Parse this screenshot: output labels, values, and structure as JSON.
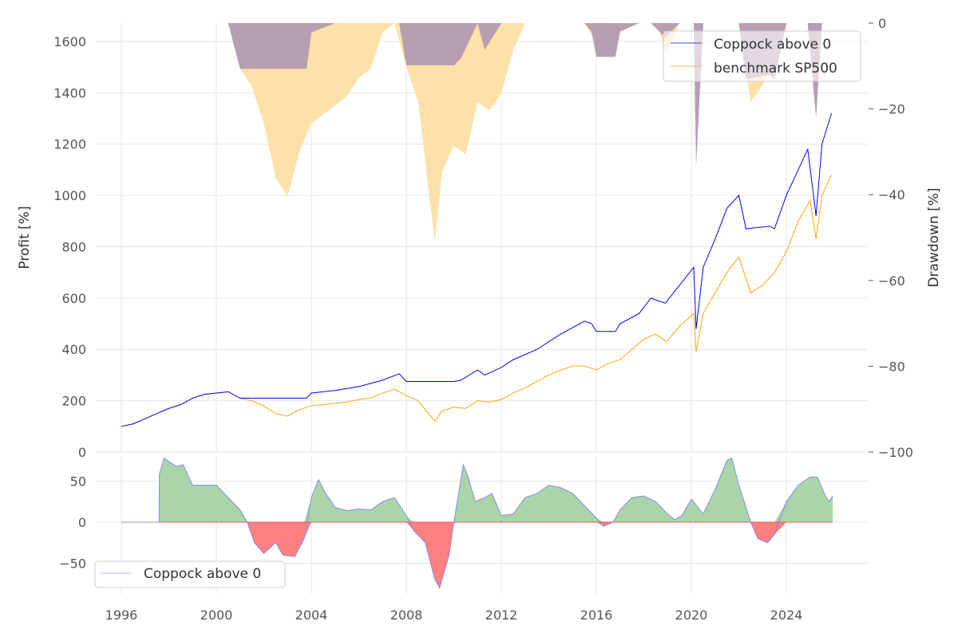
{
  "chart_data": [
    {
      "type": "line",
      "panel": "top",
      "ylabel": "Profit [%]",
      "ylabel_right": "Drawdown [%]",
      "ylim": [
        0,
        1670
      ],
      "ylim_right": [
        -100,
        0
      ],
      "yticks": [
        0,
        200,
        400,
        600,
        800,
        1000,
        1200,
        1400,
        1600
      ],
      "yticks_right": [
        0,
        -20,
        -40,
        -60,
        -80,
        -100
      ],
      "yticks_right_labels": [
        "0",
        "−20",
        "−40",
        "−60",
        "−80",
        "−100"
      ],
      "grid": true,
      "legend": {
        "placement": "top-right",
        "entries": [
          "Coppock above 0",
          "benchmark SP500"
        ]
      },
      "colors": {
        "strategy": "#0000ff",
        "benchmark": "#ffa500",
        "strategy_dd": "#aaaaff",
        "benchmark_dd": "#ffe0a8",
        "overlap_dd": "#c8a8a8"
      },
      "series": [
        {
          "name": "Coppock above 0",
          "x": [
            1996,
            1996.5,
            1997,
            1997.5,
            1998,
            1998.5,
            1999,
            1999.5,
            2000,
            2000.5,
            2001,
            2003.8,
            2004,
            2005,
            2006,
            2007,
            2007.7,
            2008,
            2010,
            2010.3,
            2011,
            2011.3,
            2012,
            2012.5,
            2013.5,
            2014.5,
            2015.5,
            2015.8,
            2016,
            2016.8,
            2017,
            2017.8,
            2018.3,
            2018.9,
            2019.5,
            2020.1,
            2020.2,
            2020.5,
            2021,
            2021.5,
            2022,
            2022.3,
            2023.3,
            2023.5,
            2024,
            2024.5,
            2024.9,
            2025.25,
            2025.5,
            2025.9
          ],
          "y": [
            100,
            110,
            130,
            150,
            170,
            185,
            210,
            225,
            230,
            235,
            210,
            210,
            230,
            240,
            255,
            280,
            305,
            275,
            275,
            280,
            320,
            300,
            330,
            360,
            400,
            460,
            510,
            500,
            470,
            470,
            500,
            540,
            600,
            580,
            650,
            720,
            480,
            720,
            830,
            950,
            1000,
            870,
            880,
            870,
            1000,
            1100,
            1180,
            920,
            1200,
            1320
          ]
        },
        {
          "name": "benchmark SP500",
          "x": [
            1996,
            1996.5,
            1997,
            1997.5,
            1998,
            1998.5,
            1999,
            1999.5,
            2000,
            2000.5,
            2001,
            2001.5,
            2002,
            2002.5,
            2003,
            2003.5,
            2004,
            2004.5,
            2005,
            2005.5,
            2006,
            2006.5,
            2007,
            2007.5,
            2008,
            2008.5,
            2009.2,
            2009.5,
            2010,
            2010.5,
            2011,
            2011.5,
            2012,
            2012.5,
            2013,
            2013.5,
            2014,
            2014.5,
            2015,
            2015.5,
            2016,
            2016.5,
            2017,
            2017.5,
            2018,
            2018.5,
            2018.95,
            2019.5,
            2020.1,
            2020.2,
            2020.5,
            2021,
            2021.5,
            2022,
            2022.5,
            2023,
            2023.5,
            2024,
            2024.5,
            2025,
            2025.25,
            2025.5,
            2025.9
          ],
          "y": [
            100,
            110,
            130,
            150,
            170,
            185,
            210,
            225,
            230,
            235,
            210,
            200,
            180,
            150,
            140,
            165,
            180,
            185,
            190,
            195,
            205,
            210,
            230,
            245,
            220,
            200,
            120,
            160,
            175,
            170,
            200,
            195,
            205,
            230,
            250,
            275,
            300,
            320,
            335,
            335,
            320,
            345,
            360,
            400,
            440,
            460,
            430,
            490,
            540,
            390,
            540,
            620,
            700,
            760,
            620,
            650,
            700,
            780,
            900,
            980,
            830,
            1000,
            1080
          ]
        }
      ]
    },
    {
      "type": "area",
      "panel": "bottom",
      "yticks": [
        -50,
        0,
        50
      ],
      "yticks_labels": [
        "−50",
        "0",
        "50"
      ],
      "xticks": [
        1996,
        2000,
        2004,
        2008,
        2012,
        2016,
        2020,
        2024
      ],
      "xlim": [
        1994.9,
        2027.1
      ],
      "ylim": [
        -82,
        85
      ],
      "legend": {
        "placement": "bottom-left",
        "entries": [
          "Coppock above 0"
        ]
      },
      "colors": {
        "positive": "#a9d5a9",
        "negative": "#ff8080",
        "line": "#8888ee"
      },
      "series": [
        {
          "name": "Coppock above 0",
          "x": [
            1996,
            1997.59,
            1997.6,
            1997.8,
            1998.3,
            1998.6,
            1999,
            1999.5,
            2000,
            2000.5,
            2001,
            2001.3,
            2001.6,
            2002,
            2002.5,
            2002.8,
            2003.3,
            2003.7,
            2004,
            2004.3,
            2004.6,
            2005,
            2005.5,
            2006,
            2006.5,
            2007,
            2007.5,
            2008,
            2008.3,
            2008.8,
            2009.2,
            2009.4,
            2009.8,
            2010,
            2010.4,
            2010.6,
            2010.9,
            2011.3,
            2011.6,
            2012,
            2012.5,
            2013,
            2013.5,
            2014,
            2014.5,
            2015,
            2015.5,
            2016,
            2016.3,
            2016.7,
            2017,
            2017.5,
            2018,
            2018.5,
            2019,
            2019.3,
            2019.6,
            2020,
            2020.5,
            2021,
            2021.5,
            2021.7,
            2022,
            2022.5,
            2022.8,
            2023.2,
            2023.5,
            2024,
            2024.5,
            2025,
            2025.3,
            2025.6,
            2025.8,
            2025.95
          ],
          "y": [
            0,
            0,
            58,
            78,
            68,
            70,
            45,
            45,
            45,
            30,
            15,
            0,
            -25,
            -38,
            -25,
            -40,
            -42,
            -20,
            30,
            52,
            35,
            18,
            14,
            16,
            15,
            25,
            30,
            8,
            -10,
            -25,
            -70,
            -80,
            -40,
            0,
            70,
            55,
            25,
            30,
            35,
            8,
            10,
            30,
            35,
            45,
            42,
            35,
            20,
            5,
            -5,
            0,
            15,
            30,
            32,
            25,
            10,
            3,
            8,
            28,
            10,
            40,
            75,
            78,
            45,
            0,
            -20,
            -25,
            -15,
            25,
            45,
            55,
            55,
            35,
            25,
            32
          ]
        }
      ]
    }
  ]
}
